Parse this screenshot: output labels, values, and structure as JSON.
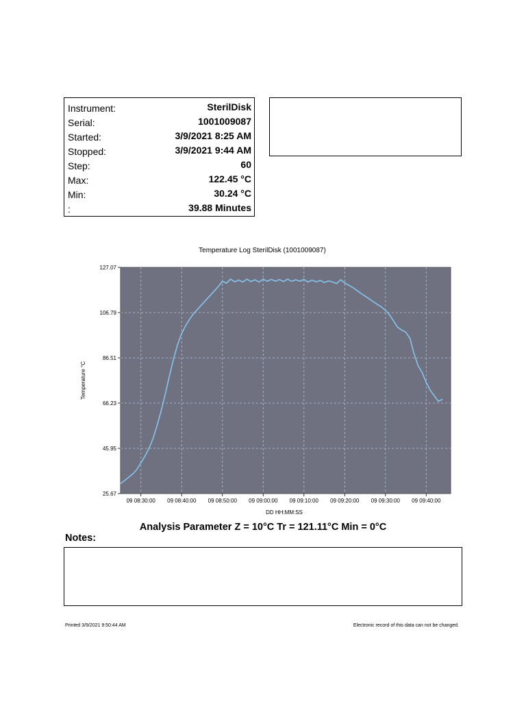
{
  "info": {
    "rows": [
      {
        "label": "Instrument:",
        "value": "SterilDisk"
      },
      {
        "label": "Serial:",
        "value": "1001009087"
      },
      {
        "label": "Started:",
        "value": "3/9/2021 8:25 AM"
      },
      {
        "label": "Stopped:",
        "value": "3/9/2021 9:44 AM"
      },
      {
        "label": "Step:",
        "value": "60"
      },
      {
        "label": "Max:",
        "value": "122.45 °C"
      },
      {
        "label": "Min:",
        "value": "30.24 °C"
      },
      {
        "label": ":",
        "value": "39.88 Minutes"
      }
    ]
  },
  "chart_data": {
    "type": "line",
    "title": "Temperature Log SterilDisk (1001009087)",
    "xlabel": "DD HH:MM:SS",
    "ylabel": "Temperature °C",
    "ylim": [
      25.67,
      127.07
    ],
    "xlim": [
      "09 08:25:00",
      "09 09:46:00"
    ],
    "y_ticks": [
      "127.07",
      "106.79",
      "86.51",
      "66.23",
      "45.95",
      "25.67"
    ],
    "x_ticks": [
      "09 08:30:00",
      "09 08:40:00",
      "09 08:50:00",
      "09 09:00:00",
      "09 09:10:00",
      "09 09:20:00",
      "09 09:30:00",
      "09 09:40:00"
    ],
    "grid": true,
    "colors": {
      "plot_bg": "#6f7180",
      "line": "#86c5ee",
      "grid": "#b8c4dc"
    },
    "series": [
      {
        "x": [
          "09 08:25:00",
          "09 08:26:00",
          "09 08:27:00",
          "09 08:28:00",
          "09 08:29:00",
          "09 08:30:00",
          "09 08:31:00",
          "09 08:32:00",
          "09 08:33:00",
          "09 08:34:00",
          "09 08:35:00",
          "09 08:36:00",
          "09 08:37:00",
          "09 08:38:00",
          "09 08:39:00",
          "09 08:40:00",
          "09 08:41:00",
          "09 08:42:00",
          "09 08:43:00",
          "09 08:44:00",
          "09 08:45:00",
          "09 08:46:00",
          "09 08:47:00",
          "09 08:48:00",
          "09 08:49:00",
          "09 08:50:00",
          "09 08:51:00",
          "09 08:52:00",
          "09 08:53:00",
          "09 08:54:00",
          "09 08:55:00",
          "09 08:56:00",
          "09 08:57:00",
          "09 08:58:00",
          "09 08:59:00",
          "09 09:00:00",
          "09 09:01:00",
          "09 09:02:00",
          "09 09:03:00",
          "09 09:04:00",
          "09 09:05:00",
          "09 09:06:00",
          "09 09:07:00",
          "09 09:08:00",
          "09 09:09:00",
          "09 09:10:00",
          "09 09:11:00",
          "09 09:12:00",
          "09 09:13:00",
          "09 09:14:00",
          "09 09:15:00",
          "09 09:16:00",
          "09 09:17:00",
          "09 09:18:00",
          "09 09:19:00",
          "09 09:20:00",
          "09 09:21:00",
          "09 09:22:00",
          "09 09:23:00",
          "09 09:24:00",
          "09 09:25:00",
          "09 09:26:00",
          "09 09:27:00",
          "09 09:28:00",
          "09 09:29:00",
          "09 09:30:00",
          "09 09:31:00",
          "09 09:32:00",
          "09 09:33:00",
          "09 09:34:00",
          "09 09:35:00",
          "09 09:36:00",
          "09 09:37:00",
          "09 09:38:00",
          "09 09:39:00",
          "09 09:40:00",
          "09 09:41:00",
          "09 09:42:00",
          "09 09:43:00",
          "09 09:44:00"
        ],
        "y": [
          30.2,
          31.5,
          33.0,
          34.5,
          36.5,
          39.5,
          42.5,
          46.0,
          50.5,
          56.5,
          63.0,
          70.5,
          78.5,
          86.0,
          92.5,
          97.5,
          101.0,
          104.0,
          106.5,
          108.5,
          110.5,
          112.5,
          114.5,
          116.5,
          118.5,
          120.8,
          120.0,
          121.8,
          120.6,
          121.4,
          120.5,
          121.8,
          120.7,
          121.5,
          120.5,
          121.8,
          120.8,
          121.7,
          120.9,
          121.6,
          120.7,
          121.8,
          120.8,
          121.5,
          120.9,
          121.7,
          120.5,
          121.4,
          120.6,
          121.2,
          120.3,
          121.0,
          120.6,
          119.8,
          121.5,
          120.1,
          119.1,
          118.0,
          116.7,
          115.4,
          114.2,
          113.0,
          111.7,
          110.5,
          109.3,
          107.8,
          105.8,
          103.0,
          100.2,
          99.0,
          98.0,
          95.3,
          88.5,
          83.0,
          80.0,
          75.5,
          72.0,
          69.5,
          67.0,
          68.0
        ]
      }
    ]
  },
  "analysis": "Analysis Parameter Z = 10°C Tr = 121.11°C Min = 0°C",
  "notes_label": "Notes:",
  "footer": {
    "printed": "Printed 3/9/2021 9:50:44 AM",
    "record": "Electronic record of this data can not be changed."
  }
}
